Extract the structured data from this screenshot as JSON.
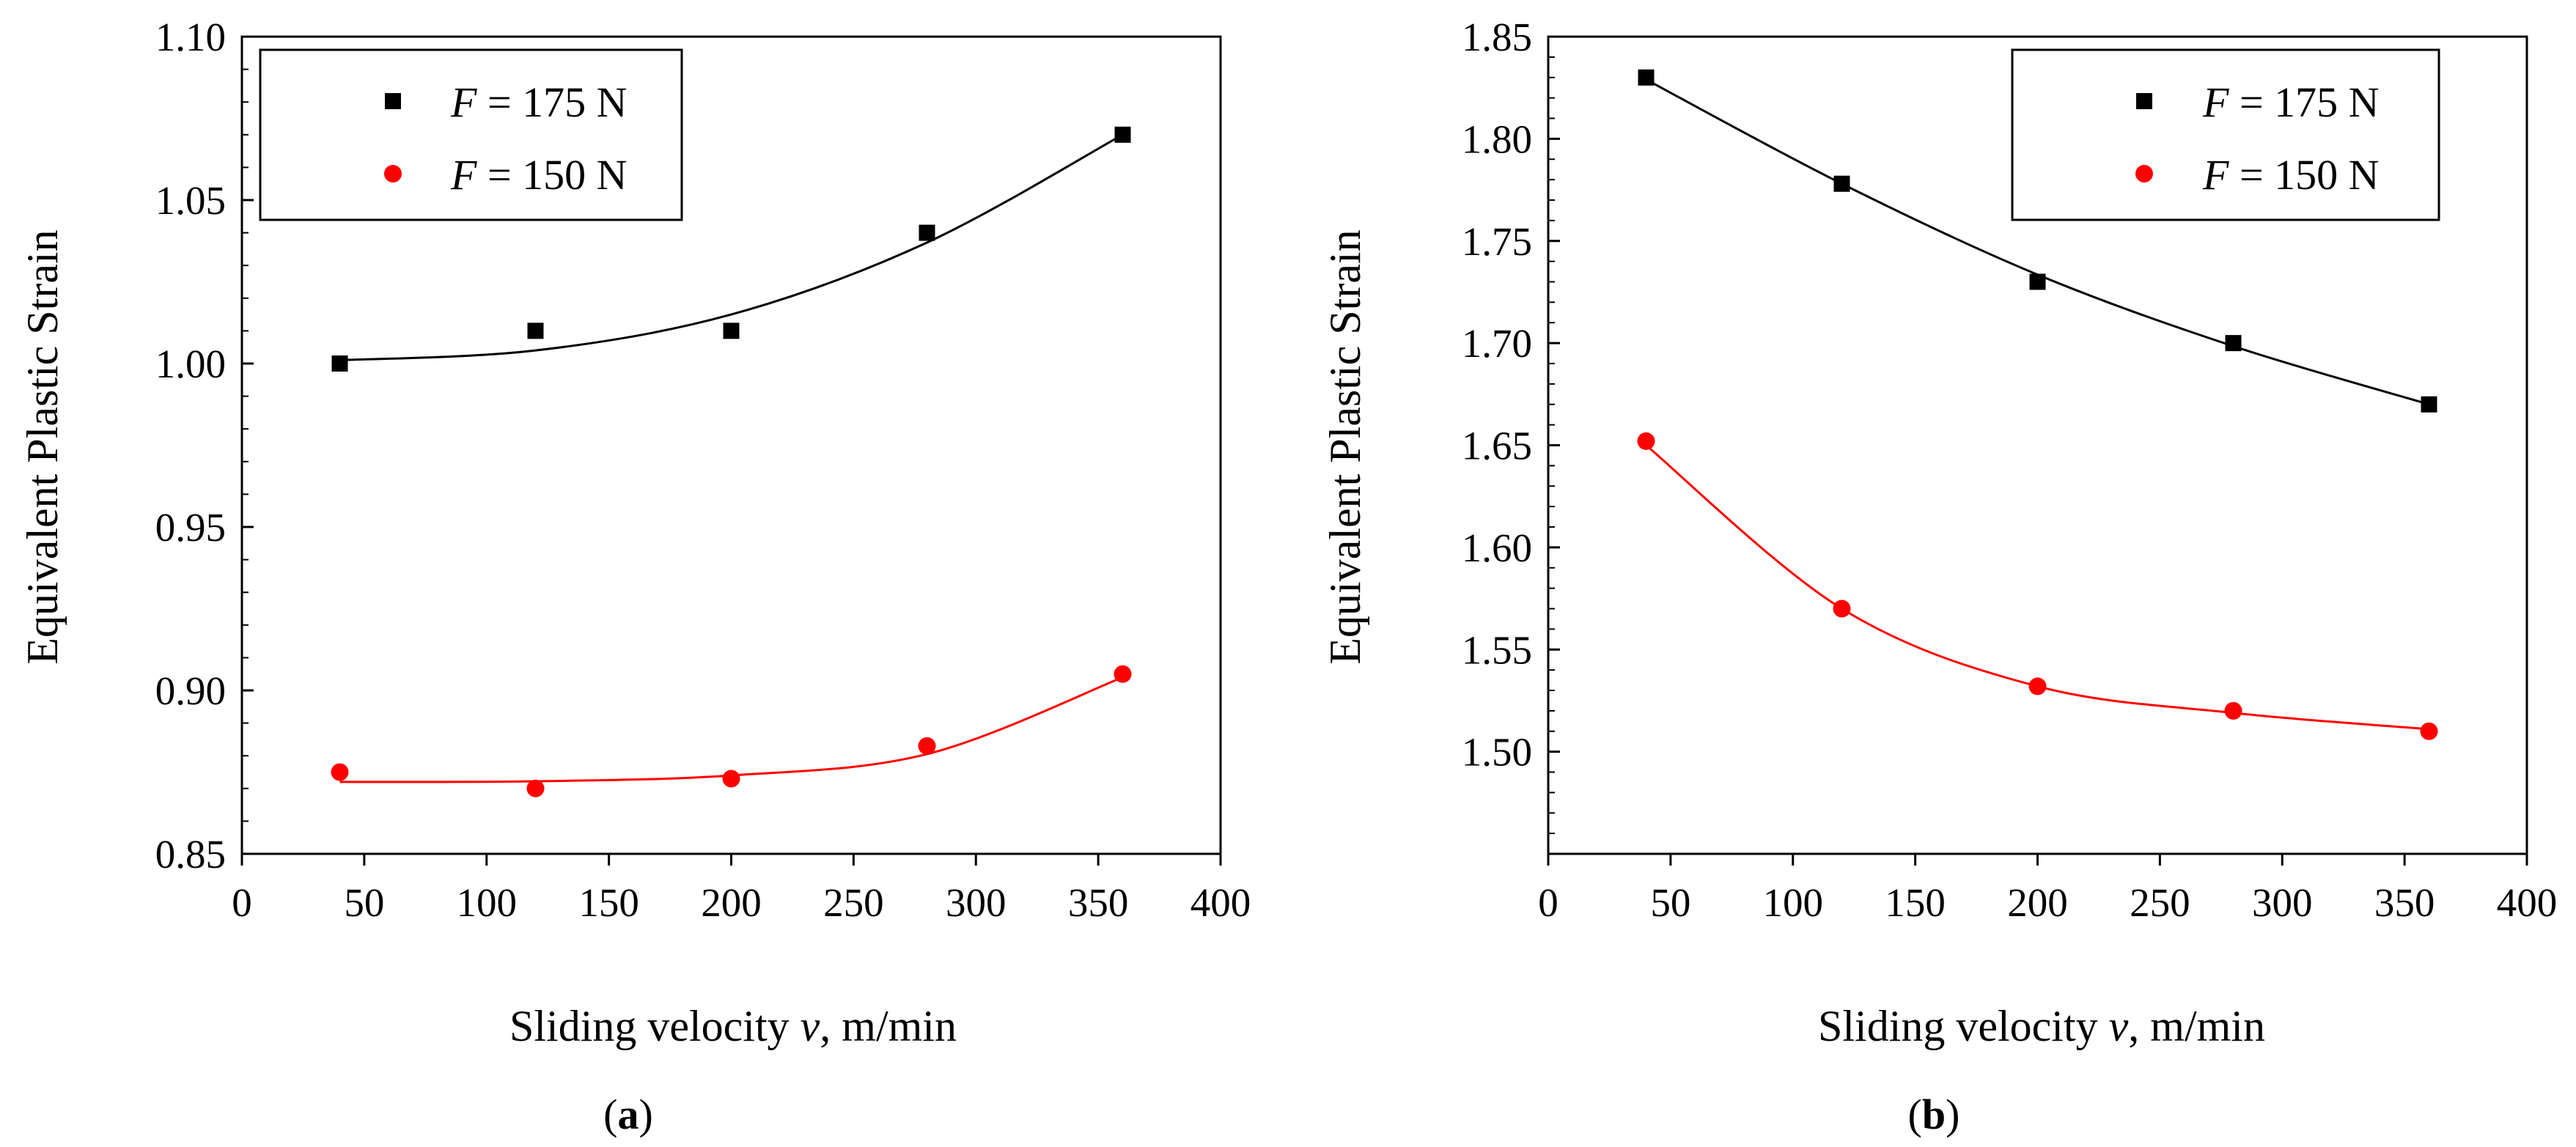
{
  "chart_data": [
    {
      "type": "scatter",
      "panel_label": "a",
      "xlabel_prefix": "Sliding velocity ",
      "xlabel_var": "v",
      "xlabel_suffix": ", m/min",
      "ylabel": "Equivalent Plastic Strain",
      "xlim": [
        0,
        400
      ],
      "ylim": [
        0.85,
        1.1
      ],
      "xticks": [
        0,
        50,
        100,
        150,
        200,
        250,
        300,
        350,
        400
      ],
      "yticks": [
        "0.85",
        "0.90",
        "0.95",
        "1.00",
        "1.05",
        "1.10"
      ],
      "legend_position": "top-left",
      "series": [
        {
          "name": "F = 175 N",
          "legend_var": "F",
          "legend_rest": " = 175 N",
          "marker": "square",
          "color": "#000000",
          "x": [
            40,
            120,
            200,
            280,
            360
          ],
          "y": [
            1.0,
            1.01,
            1.01,
            1.04,
            1.07
          ],
          "fit_y": [
            1.001,
            1.004,
            1.015,
            1.037,
            1.07
          ]
        },
        {
          "name": "F = 150 N",
          "legend_var": "F",
          "legend_rest": " = 150 N",
          "marker": "circle",
          "color": "#ff0000",
          "x": [
            40,
            120,
            200,
            280,
            360
          ],
          "y": [
            0.875,
            0.87,
            0.873,
            0.883,
            0.905
          ],
          "fit_y": [
            0.872,
            0.8722,
            0.874,
            0.8805,
            0.904
          ]
        }
      ]
    },
    {
      "type": "scatter",
      "panel_label": "b",
      "xlabel_prefix": "Sliding velocity ",
      "xlabel_var": "v",
      "xlabel_suffix": ", m/min",
      "ylabel": "Equivalent Plastic Strain",
      "xlim": [
        0,
        400
      ],
      "ylim": [
        1.45,
        1.85
      ],
      "xticks": [
        0,
        50,
        100,
        150,
        200,
        250,
        300,
        350,
        400
      ],
      "yticks": [
        "1.50",
        "1.55",
        "1.60",
        "1.65",
        "1.70",
        "1.75",
        "1.80",
        "1.85"
      ],
      "legend_position": "top-right",
      "series": [
        {
          "name": "F = 175 N",
          "legend_var": "F",
          "legend_rest": " = 175 N",
          "marker": "square",
          "color": "#000000",
          "x": [
            40,
            120,
            200,
            280,
            360
          ],
          "y": [
            1.83,
            1.778,
            1.73,
            1.7,
            1.67
          ],
          "fit_y": [
            1.829,
            1.778,
            1.7335,
            1.6985,
            1.67
          ]
        },
        {
          "name": "F = 150 N",
          "legend_var": "F",
          "legend_rest": " = 150 N",
          "marker": "circle",
          "color": "#ff0000",
          "x": [
            40,
            120,
            200,
            280,
            360
          ],
          "y": [
            1.652,
            1.57,
            1.532,
            1.52,
            1.51
          ],
          "fit_y": [
            1.65,
            1.57,
            1.532,
            1.519,
            1.511
          ]
        }
      ]
    }
  ]
}
